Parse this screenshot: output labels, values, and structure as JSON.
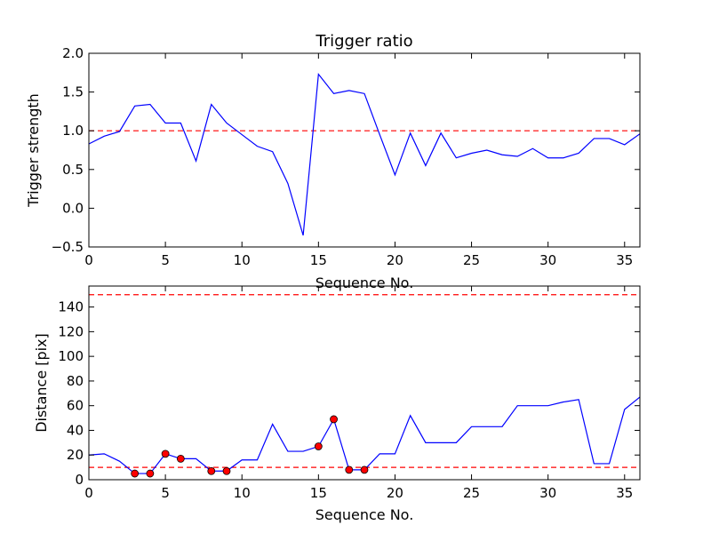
{
  "chart_data": [
    {
      "type": "line",
      "title": "Trigger ratio",
      "xlabel": "Sequence No.",
      "ylabel": "Trigger strength",
      "xlim": [
        0,
        36
      ],
      "ylim": [
        -0.5,
        2.0
      ],
      "xticks": [
        "0",
        "5",
        "10",
        "15",
        "20",
        "25",
        "30",
        "35"
      ],
      "yticks": [
        "−0.5",
        "0.0",
        "0.5",
        "1.0",
        "1.5",
        "2.0"
      ],
      "grid": false,
      "series": [
        {
          "color": "#0000ff",
          "x": [
            0,
            1,
            2,
            3,
            4,
            5,
            6,
            7,
            8,
            9,
            10,
            11,
            12,
            13,
            14,
            15,
            16,
            17,
            18,
            19,
            20,
            21,
            22,
            23,
            24,
            25,
            26,
            27,
            28,
            29,
            30,
            31,
            32,
            33,
            34,
            35,
            36
          ],
          "y": [
            0.83,
            0.93,
            0.99,
            1.32,
            1.34,
            1.1,
            1.1,
            0.61,
            1.34,
            1.1,
            0.95,
            0.8,
            0.73,
            0.32,
            -0.35,
            1.73,
            1.48,
            1.52,
            1.48,
            0.95,
            0.43,
            0.97,
            0.55,
            0.97,
            0.65,
            0.71,
            0.75,
            0.69,
            0.67,
            0.77,
            0.65,
            0.65,
            0.71,
            0.9,
            0.9,
            0.82,
            0.96
          ]
        }
      ],
      "reference_lines": [
        {
          "y": 1.0,
          "color": "#ff0000",
          "style": "dashed"
        }
      ]
    },
    {
      "type": "line",
      "title": "",
      "xlabel": "Sequence No.",
      "ylabel": "Distance [pix]",
      "xlim": [
        0,
        36
      ],
      "ylim": [
        0,
        157
      ],
      "xticks": [
        "0",
        "5",
        "10",
        "15",
        "20",
        "25",
        "30",
        "35"
      ],
      "yticks": [
        "0",
        "20",
        "40",
        "60",
        "80",
        "100",
        "120",
        "140"
      ],
      "grid": false,
      "series": [
        {
          "color": "#0000ff",
          "x": [
            0,
            1,
            2,
            3,
            4,
            5,
            6,
            7,
            8,
            9,
            10,
            11,
            12,
            13,
            14,
            15,
            16,
            17,
            18,
            19,
            20,
            21,
            22,
            23,
            24,
            25,
            26,
            27,
            28,
            29,
            30,
            31,
            32,
            33,
            34,
            35,
            36
          ],
          "y": [
            20,
            21,
            15,
            5,
            5,
            21,
            17,
            17,
            7,
            7,
            16,
            16,
            45,
            23,
            23,
            27,
            49,
            8,
            8,
            21,
            21,
            52,
            30,
            30,
            30,
            43,
            43,
            43,
            60,
            60,
            60,
            63,
            65,
            13,
            13,
            57,
            67
          ]
        }
      ],
      "markers": {
        "color": "#ff0000",
        "x": [
          3,
          4,
          5,
          6,
          8,
          9,
          15,
          16,
          17,
          18
        ],
        "y": [
          5,
          5,
          21,
          17,
          7,
          7,
          27,
          49,
          8,
          8
        ]
      },
      "reference_lines": [
        {
          "y": 150,
          "color": "#ff0000",
          "style": "dashed"
        },
        {
          "y": 10,
          "color": "#ff0000",
          "style": "dashed"
        }
      ]
    }
  ]
}
